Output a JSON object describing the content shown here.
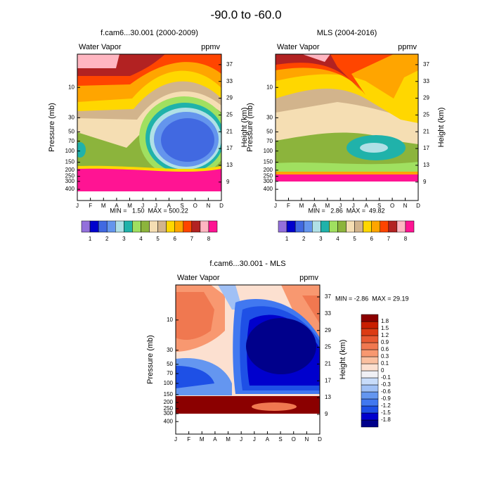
{
  "title": "-90.0 to -60.0",
  "chart_data": [
    {
      "type": "contour",
      "title": "f.cam6...30.001 (2000-2009)",
      "left_label": "Water Vapor",
      "right_label": "ppmv",
      "ylabel": "Pressure (mb)",
      "y2label": "Height (km)",
      "log_y": true,
      "categories": [
        "J",
        "F",
        "M",
        "A",
        "M",
        "J",
        "J",
        "A",
        "S",
        "O",
        "N",
        "D"
      ],
      "ylim": [
        3,
        600
      ],
      "yticks": [
        10,
        30,
        50,
        70,
        100,
        150,
        200,
        250,
        300,
        400
      ],
      "y2lim": [
        4.6,
        39.5
      ],
      "y2ticks": [
        9,
        13,
        17,
        21,
        25,
        29,
        33,
        37
      ],
      "stats": "MIN =   1.50  MAX = 500.22",
      "colorbar": {
        "labels": [
          1,
          2,
          3,
          4,
          5,
          6,
          7,
          8
        ],
        "colors": [
          "#9370db",
          "#0000cd",
          "#4169e1",
          "#6495ed",
          "#b0e0e6",
          "#20b2aa",
          "#a0e060",
          "#8cb43c",
          "#f5deb3",
          "#d2b48c",
          "#ffd700",
          "#ffa500",
          "#ff4500",
          "#b22222",
          "#ffb6c1",
          "#ff1493"
        ]
      }
    },
    {
      "type": "contour",
      "title": "MLS (2004-2016)",
      "left_label": "Water Vapor",
      "right_label": "ppmv",
      "ylabel": "Pressure (mb)",
      "y2label": "Height (km)",
      "log_y": true,
      "categories": [
        "J",
        "F",
        "M",
        "A",
        "M",
        "J",
        "J",
        "A",
        "S",
        "O",
        "N",
        "D"
      ],
      "ylim": [
        3,
        600
      ],
      "yticks": [
        10,
        30,
        50,
        70,
        100,
        150,
        200,
        250,
        300,
        400
      ],
      "y2lim": [
        4.6,
        39.5
      ],
      "y2ticks": [
        9,
        13,
        17,
        21,
        25,
        29,
        33,
        37
      ],
      "stats": "MIN =   2.86  MAX =  49.82",
      "colorbar": {
        "labels": [
          1,
          2,
          3,
          4,
          5,
          6,
          7,
          8
        ],
        "colors": [
          "#9370db",
          "#0000cd",
          "#4169e1",
          "#6495ed",
          "#b0e0e6",
          "#20b2aa",
          "#a0e060",
          "#8cb43c",
          "#f5deb3",
          "#d2b48c",
          "#ffd700",
          "#ffa500",
          "#ff4500",
          "#b22222",
          "#ffb6c1",
          "#ff1493"
        ]
      }
    },
    {
      "type": "contour",
      "title": "f.cam6...30.001 - MLS",
      "left_label": "Water Vapor",
      "right_label": "ppmv",
      "ylabel": "Pressure (mb)",
      "y2label": "Height (km)",
      "log_y": true,
      "categories": [
        "J",
        "F",
        "M",
        "A",
        "M",
        "J",
        "J",
        "A",
        "S",
        "O",
        "N",
        "D"
      ],
      "ylim": [
        2.8,
        630
      ],
      "yticks": [
        10,
        30,
        50,
        70,
        100,
        150,
        200,
        250,
        300,
        400
      ],
      "y2lim": [
        4.3,
        39.85
      ],
      "y2ticks": [
        9,
        13,
        17,
        21,
        25,
        29,
        33,
        37
      ],
      "stats": "MIN = -2.86  MAX = 29.19",
      "colorbar": {
        "labels": [
          -1.8,
          -1.5,
          -1.2,
          -0.9,
          -0.6,
          -0.3,
          -0.1,
          0,
          0.1,
          0.3,
          0.6,
          0.9,
          1.2,
          1.5,
          1.8
        ],
        "colors": [
          "#00008b",
          "#0000cd",
          "#1e50e6",
          "#4178f0",
          "#6496f0",
          "#a0c0f5",
          "#c8dcfa",
          "#f0f0f5",
          "#fce0d0",
          "#fac0a0",
          "#f89870",
          "#f07850",
          "#e85a32",
          "#dc3c14",
          "#c81e00",
          "#8b0000"
        ]
      }
    }
  ]
}
